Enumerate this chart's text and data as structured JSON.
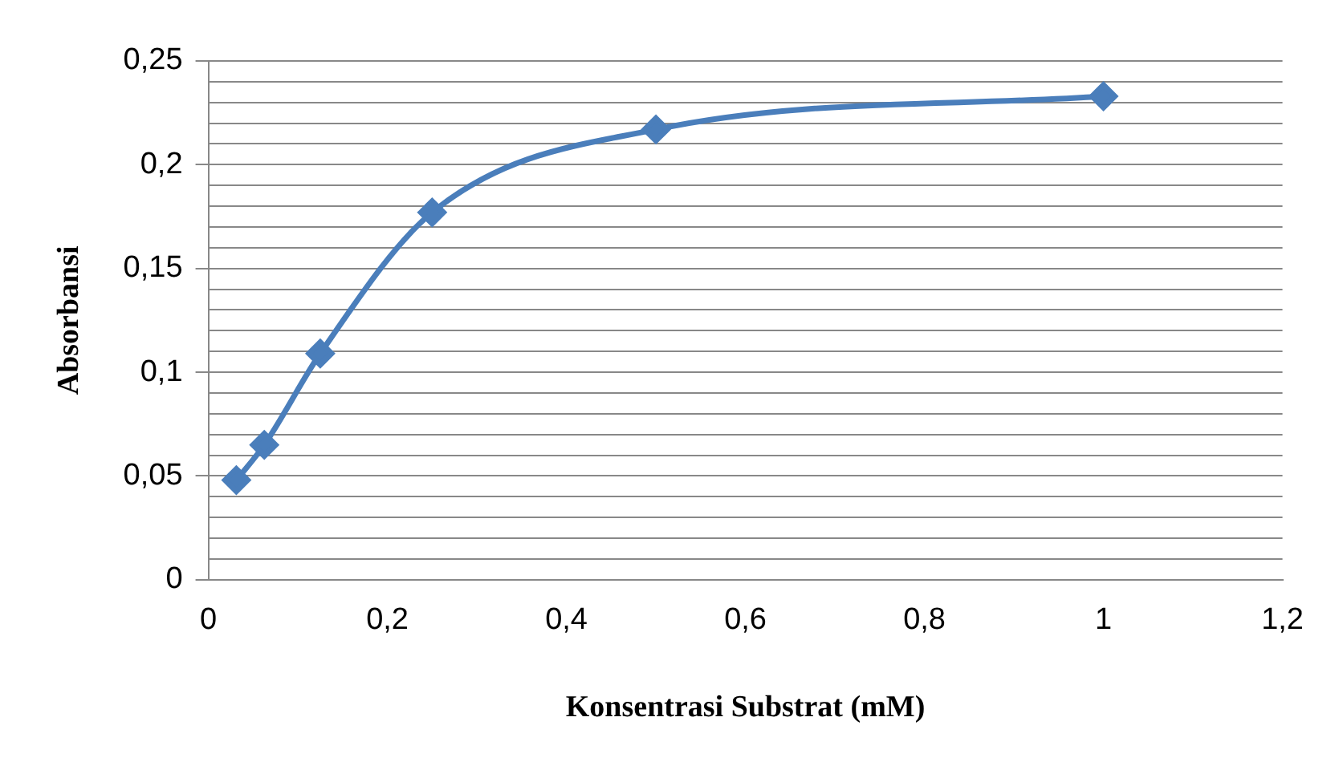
{
  "chart_data": {
    "type": "line",
    "xlabel": "Konsentrasi Substrat (mM)",
    "ylabel": "Absorbansi",
    "x": [
      0.03125,
      0.0625,
      0.125,
      0.25,
      0.5,
      1
    ],
    "series": [
      {
        "color": "#4a7ebb",
        "values": [
          0.048,
          0.065,
          0.109,
          0.177,
          0.217,
          0.233
        ]
      }
    ],
    "xlim": [
      0,
      1.2
    ],
    "xticks": [
      0,
      {
        "value": 0.2,
        "label": "0,2"
      },
      {
        "value": 0.4,
        "label": "0,4"
      },
      {
        "value": 0.6,
        "label": "0,6"
      },
      {
        "value": 0.8,
        "label": "0,8"
      },
      1,
      {
        "value": 1.2,
        "label": "1,2"
      }
    ],
    "ylim": [
      0,
      0.25
    ],
    "yticks": [
      0,
      {
        "value": 0.01,
        "label": null
      },
      {
        "value": 0.02,
        "label": null
      },
      {
        "value": 0.03,
        "label": null
      },
      {
        "value": 0.04,
        "label": null
      },
      {
        "value": 0.05,
        "label": "0,05"
      },
      {
        "value": 0.06,
        "label": null
      },
      {
        "value": 0.07,
        "label": null
      },
      {
        "value": 0.08,
        "label": null
      },
      {
        "value": 0.09,
        "label": null
      },
      {
        "value": 0.1,
        "label": "0,1"
      },
      {
        "value": 0.11,
        "label": null
      },
      {
        "value": 0.12,
        "label": null
      },
      {
        "value": 0.13,
        "label": null
      },
      {
        "value": 0.14,
        "label": null
      },
      {
        "value": 0.15,
        "label": "0,15"
      },
      {
        "value": 0.16,
        "label": null
      },
      {
        "value": 0.17,
        "label": null
      },
      {
        "value": 0.18,
        "label": null
      },
      {
        "value": 0.19,
        "label": null
      },
      {
        "value": 0.2,
        "label": "0,2"
      },
      {
        "value": 0.21,
        "label": null
      },
      {
        "value": 0.22,
        "label": null
      },
      {
        "value": 0.23,
        "label": null
      },
      {
        "value": 0.24,
        "label": null
      },
      {
        "value": 0.25,
        "label": "0,25"
      }
    ],
    "grid": "y",
    "marker": "diamond",
    "line_style": "solid",
    "legend": false
  }
}
